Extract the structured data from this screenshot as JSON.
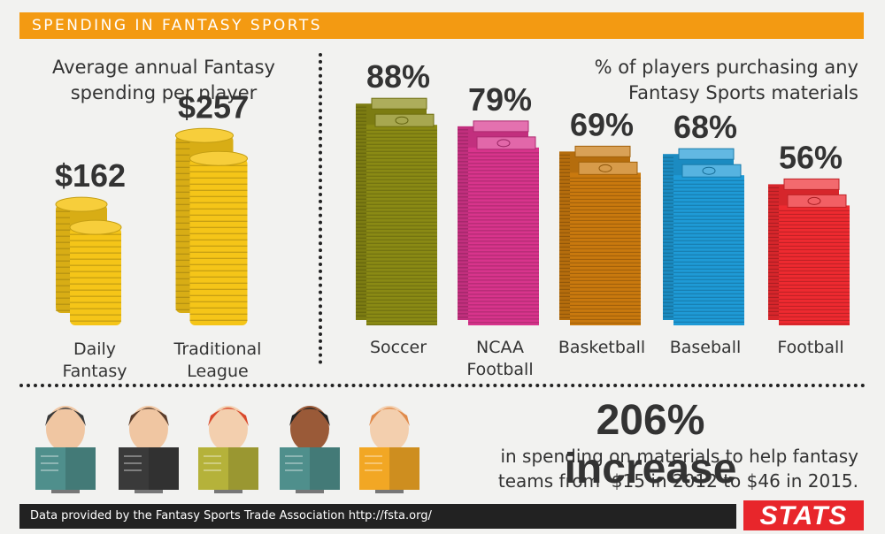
{
  "header": {
    "title": "SPENDING IN FANTASY SPORTS"
  },
  "left_panel": {
    "heading_line1": "Average annual Fantasy",
    "heading_line2": "spending per player"
  },
  "right_panel": {
    "heading_line1": "% of players purchasing any",
    "heading_line2": "Fantasy Sports materials"
  },
  "chart_data": [
    {
      "type": "bar",
      "categories": [
        "Daily Fantasy",
        "Traditional League"
      ],
      "category_lines": [
        [
          "Daily",
          "Fantasy"
        ],
        [
          "Traditional",
          "League"
        ]
      ],
      "values": [
        162,
        257
      ],
      "value_labels": [
        "$162",
        "$257"
      ],
      "title": "Average annual Fantasy spending per player",
      "unit": "$",
      "colors": [
        "#f5c518",
        "#f5c518"
      ]
    },
    {
      "type": "bar",
      "categories": [
        "Soccer",
        "NCAA Football",
        "Basketball",
        "Baseball",
        "Football"
      ],
      "category_lines": [
        [
          "Soccer"
        ],
        [
          "NCAA",
          "Football"
        ],
        [
          "Basketball"
        ],
        [
          "Baseball"
        ],
        [
          "Football"
        ]
      ],
      "values": [
        88,
        79,
        69,
        68,
        56
      ],
      "value_labels": [
        "88%",
        "79%",
        "69%",
        "68%",
        "56%"
      ],
      "title": "% of players purchasing any Fantasy Sports materials",
      "unit": "%",
      "colors": [
        "#8a8a14",
        "#d8348c",
        "#c9790e",
        "#1e9ad6",
        "#ee2a30"
      ]
    }
  ],
  "stat": {
    "headline": "206% increase",
    "line1": "in spending on materials to help fantasy",
    "line2": "teams from  $15 in 2012 to $46 in 2015."
  },
  "people": [
    "reader-mustache",
    "reader-bun",
    "reader-redhead",
    "reader-curly",
    "reader-glasses"
  ],
  "footer": {
    "source": "Data provided by the Fantasy Sports Trade Association http://fsta.org/",
    "logo": "STATS"
  },
  "colors": {
    "banner": "#f39a12",
    "text": "#333333",
    "footer": "#222222",
    "logo": "#e8262b",
    "coin": "#f5c518"
  }
}
